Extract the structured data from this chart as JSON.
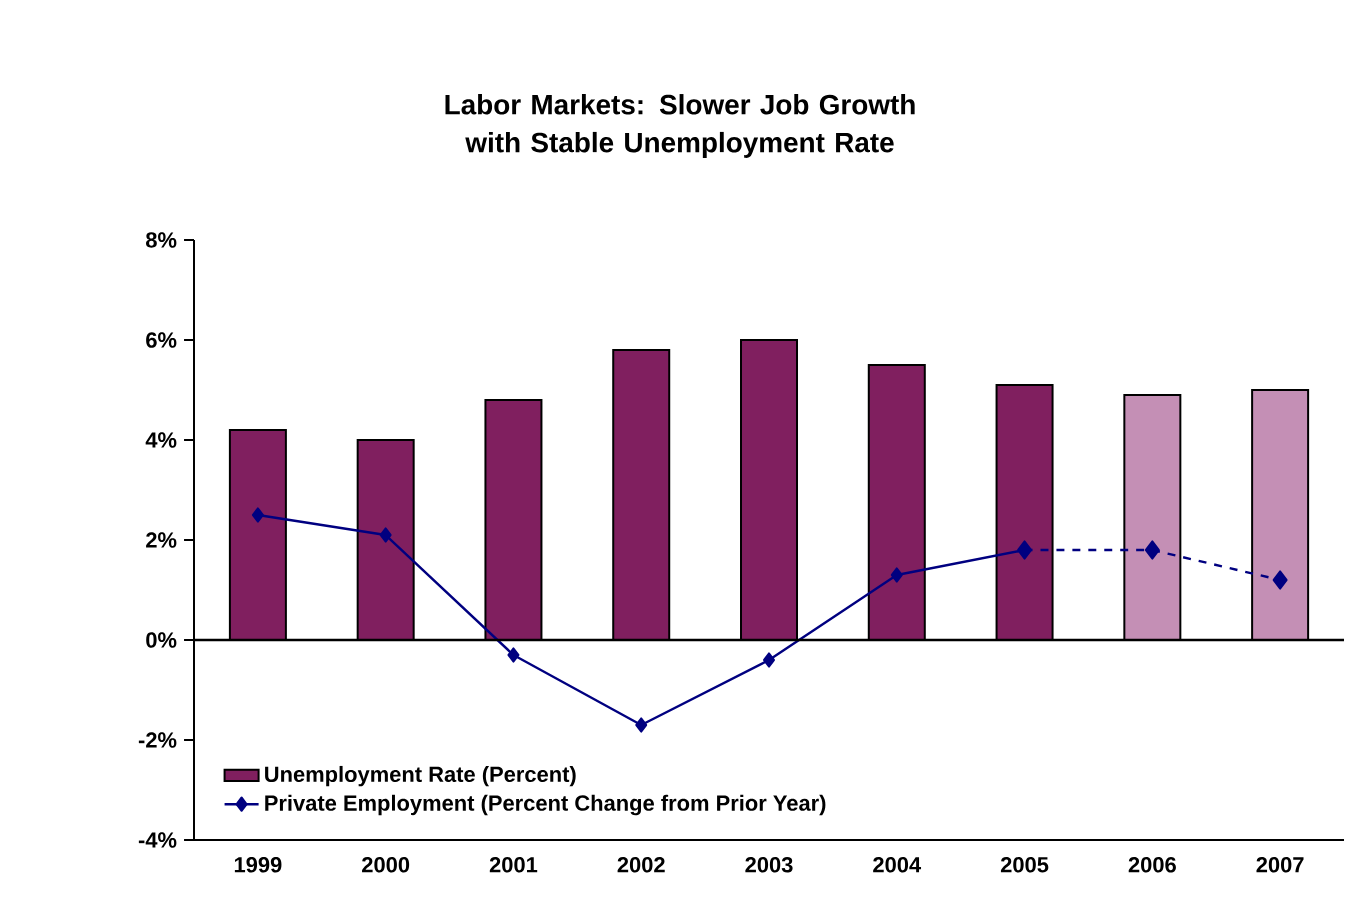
{
  "chart_data": {
    "type": "bar",
    "title": "Labor Markets: Slower Job Growth with Stable Unemployment Rate",
    "categories": [
      "1999",
      "2000",
      "2001",
      "2002",
      "2003",
      "2004",
      "2005",
      "2006",
      "2007"
    ],
    "series": [
      {
        "name": "Unemployment Rate (Percent)",
        "colors": [
          "#801f5f",
          "#801f5f",
          "#801f5f",
          "#801f5f",
          "#801f5f",
          "#801f5f",
          "#801f5f",
          "#c48fb5",
          "#c48fb5"
        ],
        "values": [
          4.2,
          4.0,
          4.8,
          5.8,
          6.0,
          5.5,
          5.1,
          4.9,
          5.0
        ]
      },
      {
        "name": "Private Employment (Percent Change from Prior Year)",
        "type": "line",
        "color": "#000080",
        "line_style": "solid",
        "values": [
          2.5,
          2.1,
          -0.3,
          -1.7,
          -0.4,
          1.3,
          1.8,
          null,
          null
        ]
      },
      {
        "type": "line",
        "color": "#000080",
        "line_style": "dashed",
        "values": [
          null,
          null,
          null,
          null,
          null,
          null,
          1.8,
          1.8,
          1.2
        ]
      }
    ],
    "ylim": [
      -4,
      8
    ],
    "yticks": [
      {
        "value": -4,
        "label": "-4%"
      },
      {
        "value": -2,
        "label": "-2%"
      },
      {
        "value": 0,
        "label": "0%"
      },
      {
        "value": 2,
        "label": "2%"
      },
      {
        "value": 4,
        "label": "4%"
      },
      {
        "value": 6,
        "label": "6%"
      },
      {
        "value": 8,
        "label": "8%"
      }
    ],
    "ref_lines": [
      {
        "axis": "y",
        "value": 0
      }
    ],
    "marker": "diamond",
    "legend": "bottom left"
  }
}
